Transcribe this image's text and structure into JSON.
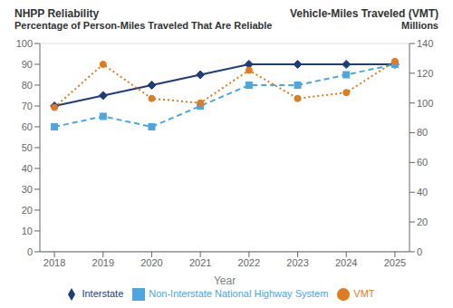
{
  "chart_data": {
    "type": "line",
    "title": "NHPP Reliability",
    "subtitle": "Percentage of Person-Miles Traveled That Are Reliable",
    "annotations": [
      "Vehicle-Miles Traveled (VMT)",
      "Millions"
    ],
    "xlabel": "Year",
    "x": [
      2018,
      2019,
      2020,
      2021,
      2022,
      2023,
      2024,
      2025
    ],
    "xlim": [
      2017.7,
      2025.3
    ],
    "xticks": [
      2018,
      2019,
      2020,
      2021,
      2022,
      2023,
      2024,
      2025
    ],
    "ylim": [
      0,
      100
    ],
    "yticks": [
      0,
      10,
      20,
      30,
      40,
      50,
      60,
      70,
      80,
      90,
      100
    ],
    "y2lim": [
      0,
      140
    ],
    "y2ticks": [
      0,
      20,
      40,
      60,
      80,
      100,
      120,
      140
    ],
    "grid": true,
    "legend": "bottom",
    "series": [
      {
        "name": "Interstate",
        "color": "#1f3d7a",
        "values": [
          70,
          75,
          80,
          85,
          90,
          90,
          90,
          90
        ],
        "marker": "diamond",
        "line_style": "solid"
      },
      {
        "name": "Non-Interstate National Highway System",
        "color": "#4da6e0",
        "values": [
          60,
          65,
          60,
          70,
          80,
          80,
          85,
          90
        ],
        "marker": "square",
        "line_style": "dashed"
      },
      {
        "name": "VMT",
        "color": "#e07b20",
        "values": [
          97,
          126,
          103,
          100,
          122,
          103,
          107,
          128
        ],
        "marker": "circle",
        "line_style": "dotted",
        "axis": "y2"
      }
    ]
  }
}
